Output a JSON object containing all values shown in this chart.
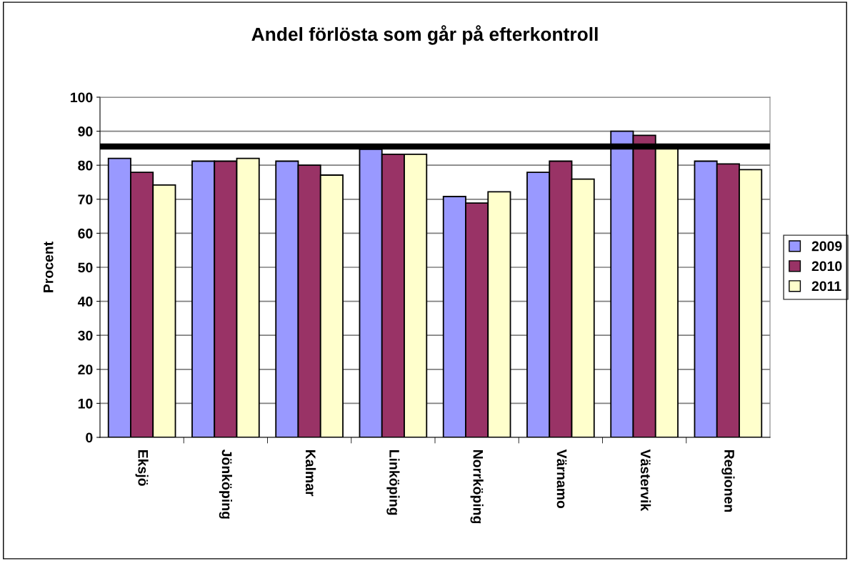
{
  "chart_data": {
    "type": "bar",
    "title": "Andel förlösta som går på efterkontroll",
    "ylabel": "Procent",
    "categories": [
      "Eksjö",
      "Jönköping",
      "Kalmar",
      "Linköping",
      "Norrköping",
      "Värnamo",
      "Västervik",
      "Regionen"
    ],
    "series": [
      {
        "name": "2009",
        "color": "#9999ff",
        "values": [
          82,
          81.2,
          81.2,
          84.7,
          70.8,
          77.9,
          90,
          81.2
        ]
      },
      {
        "name": "2010",
        "color": "#993366",
        "values": [
          77.9,
          81.2,
          80,
          83.2,
          68.9,
          81.2,
          88.8,
          80.4
        ]
      },
      {
        "name": "2011",
        "color": "#ffffcc",
        "values": [
          74.2,
          82,
          77.1,
          83.2,
          72.2,
          75.9,
          85.3,
          78.7
        ]
      }
    ],
    "ylim": [
      0,
      100
    ],
    "yticks": [
      0,
      10,
      20,
      30,
      40,
      50,
      60,
      70,
      80,
      90,
      100
    ],
    "ref_lines": [
      {
        "axis": "y",
        "value": 85.5,
        "color": "#000000"
      }
    ],
    "grid": "y",
    "legend": "right"
  }
}
